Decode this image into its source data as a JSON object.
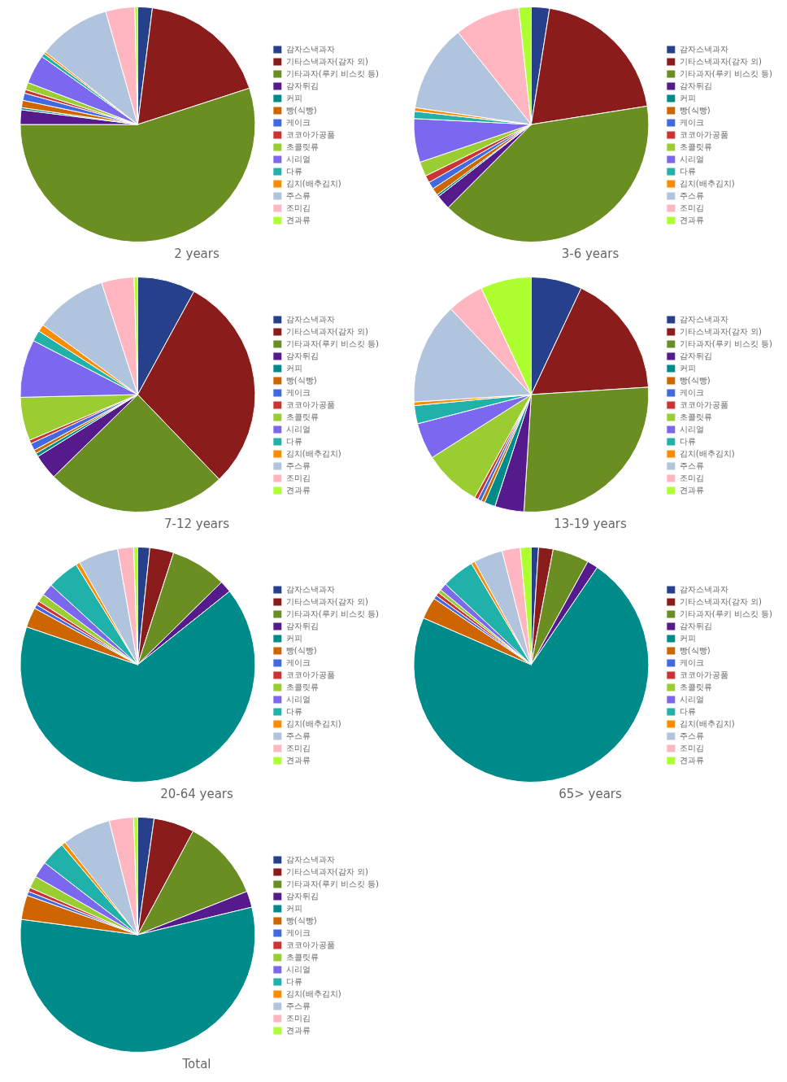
{
  "chart_data": [
    {
      "type": "pie",
      "title": "2 years",
      "legend": "right",
      "categories": [
        "감자스낵과자",
        "기타스낵과자(감자 외)",
        "기타과자(루키 비스킷 등)",
        "감자튀김",
        "커피",
        "빵(식빵)",
        "케이크",
        "코코아가공품",
        "초콜릿류",
        "시리얼",
        "다류",
        "김치(배추김치)",
        "주스류",
        "조미김",
        "견과류"
      ],
      "values": [
        2.0,
        18.0,
        55.0,
        2.0,
        0.3,
        1.0,
        1.0,
        0.5,
        1.0,
        4.0,
        0.5,
        0.3,
        10.0,
        4.0,
        0.4
      ],
      "colors": [
        "#27408B",
        "#8B1C1C",
        "#6B8E23",
        "#551A8B",
        "#008B8B",
        "#CD6600",
        "#4169E1",
        "#CD3333",
        "#9ACD32",
        "#7B68EE",
        "#20B2AA",
        "#FF8C00",
        "#B0C4DE",
        "#FFB6C1",
        "#ADFF2F"
      ]
    },
    {
      "type": "pie",
      "title": "3-6 years",
      "legend": "right",
      "categories": [
        "감자스낵과자",
        "기타스낵과자(감자 외)",
        "기타과자(루키 비스킷 등)",
        "감자튀김",
        "커피",
        "빵(식빵)",
        "케이크",
        "코코아가공품",
        "초콜릿류",
        "시리얼",
        "다류",
        "김치(배추김치)",
        "주스류",
        "조미김",
        "견과류"
      ],
      "values": [
        2.5,
        20.0,
        40.0,
        2.0,
        0.3,
        1.0,
        1.0,
        1.0,
        2.0,
        6.0,
        1.0,
        0.5,
        12.0,
        9.0,
        1.7
      ],
      "colors": [
        "#27408B",
        "#8B1C1C",
        "#6B8E23",
        "#551A8B",
        "#008B8B",
        "#CD6600",
        "#4169E1",
        "#CD3333",
        "#9ACD32",
        "#7B68EE",
        "#20B2AA",
        "#FF8C00",
        "#B0C4DE",
        "#FFB6C1",
        "#ADFF2F"
      ]
    },
    {
      "type": "pie",
      "title": "7-12 years",
      "legend": "right",
      "categories": [
        "감자스낵과자",
        "기타스낵과자(감자 외)",
        "기타과자(루키 비스킷 등)",
        "감자튀김",
        "커피",
        "빵(식빵)",
        "케이크",
        "코코아가공품",
        "초콜릿류",
        "시리얼",
        "다류",
        "김치(배추김치)",
        "주스류",
        "조미김",
        "견과류"
      ],
      "values": [
        8.0,
        30.0,
        25.0,
        3.5,
        0.5,
        0.5,
        1.0,
        0.5,
        6.0,
        8.0,
        1.5,
        1.0,
        10.0,
        4.5,
        0.5
      ],
      "colors": [
        "#27408B",
        "#8B1C1C",
        "#6B8E23",
        "#551A8B",
        "#008B8B",
        "#CD6600",
        "#4169E1",
        "#CD3333",
        "#9ACD32",
        "#7B68EE",
        "#20B2AA",
        "#FF8C00",
        "#B0C4DE",
        "#FFB6C1",
        "#ADFF2F"
      ]
    },
    {
      "type": "pie",
      "title": "13-19 years",
      "legend": "right",
      "categories": [
        "감자스낵과자",
        "기타스낵과자(감자 외)",
        "기타과자(루키 비스킷 등)",
        "감자튀김",
        "커피",
        "빵(식빵)",
        "케이크",
        "코코아가공품",
        "초콜릿류",
        "시리얼",
        "다류",
        "김치(배추김치)",
        "주스류",
        "조미김",
        "견과류"
      ],
      "values": [
        7.0,
        17.0,
        27.0,
        4.0,
        1.5,
        0.5,
        0.5,
        0.5,
        8.0,
        5.0,
        2.5,
        0.5,
        14.0,
        5.0,
        7.0
      ],
      "colors": [
        "#27408B",
        "#8B1C1C",
        "#6B8E23",
        "#551A8B",
        "#008B8B",
        "#CD6600",
        "#4169E1",
        "#CD3333",
        "#9ACD32",
        "#7B68EE",
        "#20B2AA",
        "#FF8C00",
        "#B0C4DE",
        "#FFB6C1",
        "#ADFF2F"
      ]
    },
    {
      "type": "pie",
      "title": "20-64 years",
      "legend": "right",
      "categories": [
        "감자스낵과자",
        "기타스낵과자(감자 외)",
        "기타과자(루키 비스킷 등)",
        "감자튀김",
        "커피",
        "빵(식빵)",
        "케이크",
        "코코아가공품",
        "초콜릿류",
        "시리얼",
        "다류",
        "김치(배추김치)",
        "주스류",
        "조미김",
        "견과류"
      ],
      "values": [
        1.5,
        3.0,
        7.0,
        1.5,
        60.0,
        2.5,
        0.5,
        0.5,
        1.0,
        1.5,
        4.0,
        0.5,
        5.0,
        2.0,
        0.5
      ],
      "colors": [
        "#27408B",
        "#8B1C1C",
        "#6B8E23",
        "#551A8B",
        "#008B8B",
        "#CD6600",
        "#4169E1",
        "#CD3333",
        "#9ACD32",
        "#7B68EE",
        "#20B2AA",
        "#FF8C00",
        "#B0C4DE",
        "#FFB6C1",
        "#ADFF2F"
      ]
    },
    {
      "type": "pie",
      "title": "65> years",
      "legend": "right",
      "categories": [
        "감자스낵과자",
        "기타스낵과자(감자 외)",
        "기타과자(루키 비스킷 등)",
        "감자튀김",
        "커피",
        "빵(식빵)",
        "케이크",
        "코코아가공품",
        "초콜릿류",
        "시리얼",
        "다류",
        "김치(배추김치)",
        "주스류",
        "조미김",
        "견과류"
      ],
      "values": [
        1.0,
        2.0,
        5.0,
        1.5,
        72.0,
        3.0,
        0.5,
        0.5,
        0.5,
        1.0,
        4.5,
        0.5,
        4.0,
        2.5,
        1.5
      ],
      "colors": [
        "#27408B",
        "#8B1C1C",
        "#6B8E23",
        "#551A8B",
        "#008B8B",
        "#CD6600",
        "#4169E1",
        "#CD3333",
        "#9ACD32",
        "#7B68EE",
        "#20B2AA",
        "#FF8C00",
        "#B0C4DE",
        "#FFB6C1",
        "#ADFF2F"
      ]
    },
    {
      "type": "pie",
      "title": "Total",
      "legend": "right",
      "categories": [
        "감자스낵과자",
        "기타스낵과자(감자 외)",
        "기타과자(루키 비스킷 등)",
        "감자튀김",
        "커피",
        "빵(식빵)",
        "케이크",
        "코코아가공품",
        "초콜릿류",
        "시리얼",
        "다류",
        "김치(배추김치)",
        "주스류",
        "조미김",
        "견과류"
      ],
      "values": [
        2.0,
        5.0,
        10.0,
        2.0,
        50.0,
        3.0,
        0.5,
        0.5,
        1.5,
        2.0,
        3.0,
        0.5,
        6.0,
        3.0,
        0.5
      ],
      "colors": [
        "#27408B",
        "#8B1C1C",
        "#6B8E23",
        "#551A8B",
        "#008B8B",
        "#CD6600",
        "#4169E1",
        "#CD3333",
        "#9ACD32",
        "#7B68EE",
        "#20B2AA",
        "#FF8C00",
        "#B0C4DE",
        "#FFB6C1",
        "#ADFF2F"
      ]
    }
  ]
}
